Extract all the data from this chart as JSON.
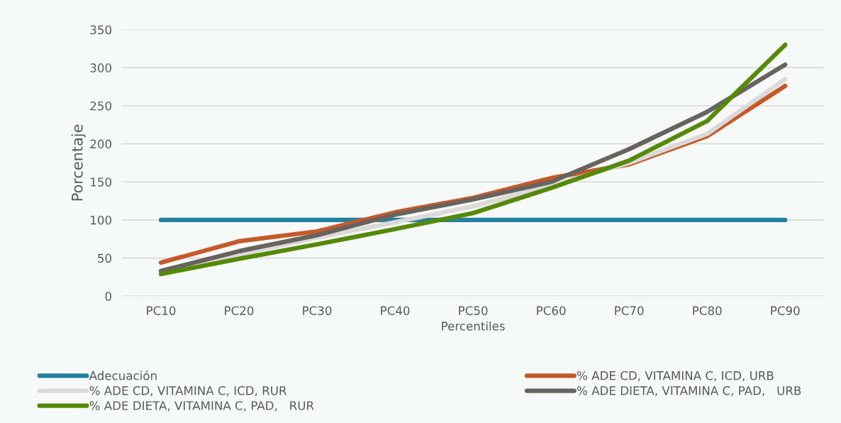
{
  "chart_data": {
    "type": "line",
    "xlabel": "Percentiles",
    "ylabel": "Porcentaje",
    "categories": [
      "PC10",
      "PC20",
      "PC30",
      "PC40",
      "PC50",
      "PC60",
      "PC70",
      "PC80",
      "PC90"
    ],
    "series": [
      {
        "name": "Adecuación",
        "color": "#23809e",
        "values": [
          100,
          100,
          100,
          100,
          100,
          100,
          100,
          100,
          100
        ]
      },
      {
        "name": "% ADE CD, VITAMINA C, ICD, URB",
        "color": "#c55a28",
        "values": [
          44,
          72,
          85,
          110,
          129,
          155,
          173,
          210,
          276
        ]
      },
      {
        "name": "% ADE CD, VITAMINA C, ICD, RUR",
        "color": "#dcdad8",
        "values": [
          33,
          55,
          77,
          97,
          118,
          145,
          175,
          213,
          285
        ]
      },
      {
        "name": "% ADE DIETA, VITAMINA C, PAD,   URB",
        "color": "#67645f",
        "values": [
          33,
          59,
          80,
          107,
          127,
          150,
          193,
          242,
          304
        ]
      },
      {
        "name": "% ADE DIETA, VITAMINA C, PAD,   RUR",
        "color": "#548a08",
        "values": [
          29,
          49,
          68,
          88,
          109,
          142,
          178,
          230,
          330
        ]
      }
    ],
    "ylim": [
      0,
      350
    ],
    "yticks": [
      0,
      50,
      100,
      150,
      200,
      250,
      300,
      350
    ],
    "grid": "y",
    "legend": "bottom",
    "marker": "none",
    "line_style": "solid"
  }
}
